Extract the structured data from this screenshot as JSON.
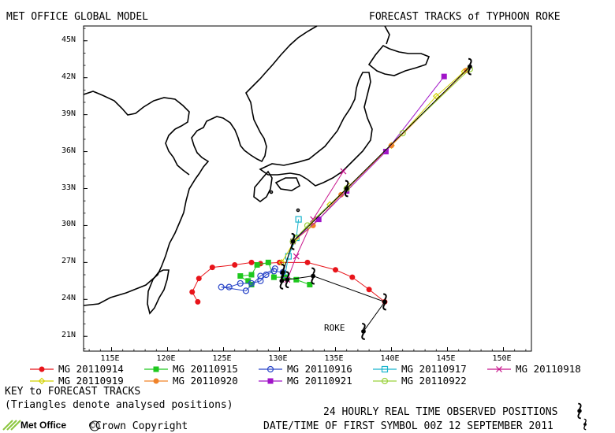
{
  "header": {
    "left_title": "MET OFFICE GLOBAL MODEL",
    "right_title": "FORECAST TRACKS of TYPHOON ROKE"
  },
  "axes": {
    "lon_labels": [
      "115E",
      "120E",
      "125E",
      "130E",
      "135E",
      "140E",
      "145E",
      "150E"
    ],
    "lat_labels": [
      "21N",
      "24N",
      "27N",
      "30N",
      "33N",
      "36N",
      "39N",
      "42N",
      "45N"
    ],
    "lon_range": [
      112.5,
      152.5
    ],
    "lat_range": [
      19.8,
      46.2
    ]
  },
  "storm_label": "ROKE",
  "legend": {
    "items": [
      {
        "label": "MG 20110914",
        "color": "#e8141a",
        "marker": "circle-filled"
      },
      {
        "label": "MG 20110915",
        "color": "#1ec81e",
        "marker": "square-filled"
      },
      {
        "label": "MG 20110916",
        "color": "#2a46c8",
        "marker": "circle-open"
      },
      {
        "label": "MG 20110917",
        "color": "#19b4cd",
        "marker": "square-open"
      },
      {
        "label": "MG 20110918",
        "color": "#c8148c",
        "marker": "cross"
      },
      {
        "label": "MG 20110919",
        "color": "#d2d200",
        "marker": "diamond-open"
      },
      {
        "label": "MG 20110920",
        "color": "#f08228",
        "marker": "circle-filled"
      },
      {
        "label": "MG 20110921",
        "color": "#a014c8",
        "marker": "square-filled"
      },
      {
        "label": "MG 20110922",
        "color": "#9ad23c",
        "marker": "circle-open"
      }
    ],
    "key_title": "KEY to FORECAST TRACKS",
    "key_note": "(Triangles denote analysed positions)"
  },
  "observed": {
    "label": "24 HOURLY REAL TIME OBSERVED POSITIONS",
    "first_symbol": "DATE/TIME OF FIRST SYMBOL 00Z 12 SEPTEMBER 2011",
    "positions": [
      [
        137.5,
        21.4
      ],
      [
        139.4,
        23.8
      ],
      [
        133.0,
        25.9
      ],
      [
        130.7,
        25.6
      ],
      [
        130.2,
        25.5
      ],
      [
        130.3,
        26.2
      ],
      [
        131.2,
        28.7
      ],
      [
        136.0,
        33.0
      ],
      [
        147.0,
        42.9
      ]
    ]
  },
  "footer": {
    "logo_text": "Met Office",
    "copyright": "©Crown Copyright"
  },
  "chart_data": {
    "type": "map-tracks",
    "series": [
      {
        "name": "MG 20110914",
        "points": [
          [
            139.4,
            23.8
          ],
          [
            138,
            24.8
          ],
          [
            136.5,
            25.8
          ],
          [
            135,
            26.4
          ],
          [
            132.5,
            27.0
          ],
          [
            130,
            27.0
          ],
          [
            128.3,
            26.9
          ],
          [
            127.5,
            27.0
          ],
          [
            126,
            26.8
          ],
          [
            124,
            26.6
          ],
          [
            122.8,
            25.7
          ],
          [
            122.2,
            24.6
          ],
          [
            122.7,
            23.8
          ]
        ]
      },
      {
        "name": "MG 20110915",
        "points": [
          [
            132.7,
            25.2
          ],
          [
            131.5,
            25.6
          ],
          [
            130.5,
            25.8
          ],
          [
            129.5,
            25.8
          ],
          [
            129,
            27.0
          ],
          [
            128,
            26.8
          ],
          [
            127.5,
            26.0
          ],
          [
            126.5,
            25.9
          ],
          [
            127.5,
            25.2
          ],
          [
            127.2,
            25.5
          ]
        ]
      },
      {
        "name": "MG 20110916",
        "points": [
          [
            130.3,
            26.2
          ],
          [
            129.5,
            26.3
          ],
          [
            128.8,
            26.0
          ],
          [
            128.3,
            25.5
          ],
          [
            127.5,
            25.3
          ],
          [
            126.5,
            25.3
          ],
          [
            125.5,
            25.0
          ],
          [
            124.8,
            25.0
          ],
          [
            127.0,
            24.7
          ],
          [
            128.3,
            25.9
          ],
          [
            129.6,
            26.5
          ]
        ]
      },
      {
        "name": "MG 20110917",
        "points": [
          [
            130.5,
            26.0
          ],
          [
            130.8,
            27.5
          ],
          [
            131.5,
            29.0
          ],
          [
            131.7,
            30.5
          ]
        ]
      },
      {
        "name": "MG 20110918",
        "points": [
          [
            130.7,
            25.6
          ],
          [
            131.5,
            27.5
          ],
          [
            133.0,
            30.5
          ],
          [
            135.7,
            34.4
          ]
        ]
      },
      {
        "name": "MG 20110919",
        "points": [
          [
            130.2,
            27.0
          ],
          [
            131.5,
            29.0
          ],
          [
            134.5,
            31.7
          ],
          [
            136.2,
            33.2
          ],
          [
            140.0,
            36.5
          ],
          [
            144.0,
            40.5
          ],
          [
            146.5,
            42.5
          ]
        ]
      },
      {
        "name": "MG 20110920",
        "points": [
          [
            131.2,
            28.7
          ],
          [
            133.0,
            30.0
          ],
          [
            135.5,
            32.5
          ],
          [
            140.0,
            36.5
          ],
          [
            146.7,
            42.6
          ]
        ]
      },
      {
        "name": "MG 20110921",
        "points": [
          [
            131.2,
            28.7
          ],
          [
            133.5,
            30.5
          ],
          [
            136.0,
            32.8
          ],
          [
            139.5,
            36.0
          ],
          [
            144.7,
            42.1
          ]
        ]
      },
      {
        "name": "MG 20110922",
        "points": [
          [
            131.2,
            28.7
          ],
          [
            132.5,
            30.0
          ],
          [
            136.0,
            33.0
          ],
          [
            141.0,
            37.5
          ],
          [
            147.0,
            42.7
          ]
        ]
      }
    ],
    "observed_track": [
      [
        137.5,
        21.4
      ],
      [
        139.4,
        23.8
      ],
      [
        133.0,
        25.9
      ],
      [
        130.7,
        25.6
      ],
      [
        130.2,
        25.5
      ],
      [
        130.3,
        26.2
      ],
      [
        131.2,
        28.7
      ],
      [
        136.0,
        33.0
      ],
      [
        147.0,
        42.9
      ]
    ]
  }
}
